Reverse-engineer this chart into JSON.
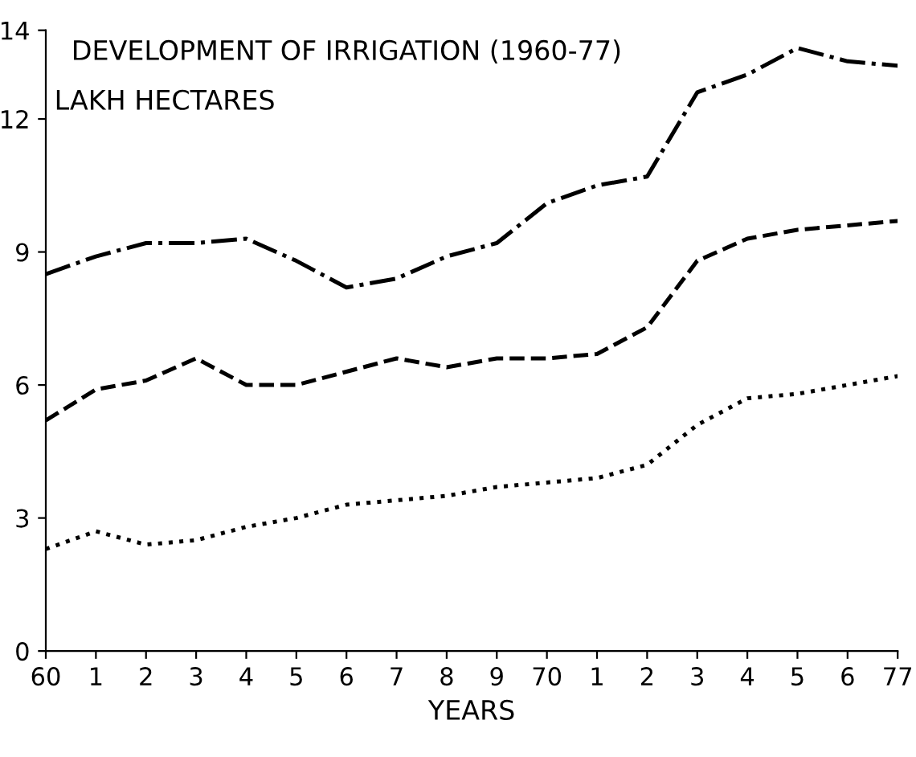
{
  "chart_data": {
    "type": "line",
    "title": "DEVELOPMENT OF IRRIGATION (1960-77)",
    "subtitle": "LAKH HECTARES",
    "xlabel": "YEARS",
    "categories": [
      "60",
      "1",
      "2",
      "3",
      "4",
      "5",
      "6",
      "7",
      "8",
      "9",
      "70",
      "1",
      "2",
      "3",
      "4",
      "5",
      "6",
      "77"
    ],
    "ylim": [
      0,
      14
    ],
    "yticks": [
      0,
      3,
      6,
      9,
      12,
      14
    ],
    "grid": false,
    "legend": false,
    "marker": "none",
    "series": [
      {
        "color": "#000000",
        "line_style": "dashdot",
        "values": [
          8.5,
          8.9,
          9.2,
          9.2,
          9.3,
          8.8,
          8.2,
          8.4,
          8.9,
          9.2,
          10.1,
          10.5,
          10.7,
          12.6,
          13.0,
          13.6,
          13.3,
          13.2
        ]
      },
      {
        "color": "#000000",
        "line_style": "dashed",
        "values": [
          5.2,
          5.9,
          6.1,
          6.6,
          6.0,
          6.0,
          6.3,
          6.6,
          6.4,
          6.6,
          6.6,
          6.7,
          7.3,
          8.8,
          9.3,
          9.5,
          9.6,
          9.7
        ]
      },
      {
        "color": "#000000",
        "line_style": "dotted",
        "values": [
          2.3,
          2.7,
          2.4,
          2.5,
          2.8,
          3.0,
          3.3,
          3.4,
          3.5,
          3.7,
          3.8,
          3.9,
          4.2,
          5.1,
          5.7,
          5.8,
          6.0,
          6.2
        ]
      }
    ]
  }
}
